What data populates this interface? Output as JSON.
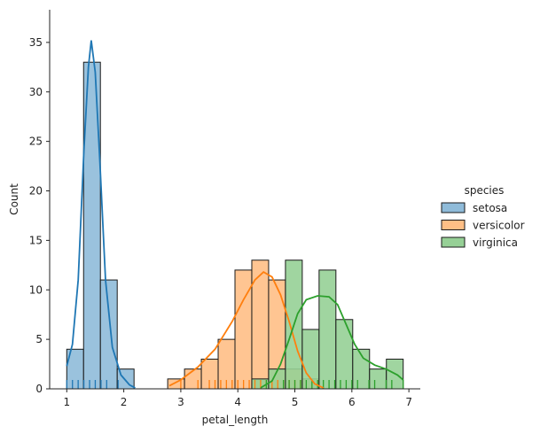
{
  "chart_data": {
    "type": "histogram",
    "xlabel": "petal_length",
    "ylabel": "Count",
    "xlim": [
      0.7,
      7.2
    ],
    "ylim": [
      0,
      38.3
    ],
    "xticks": [
      1,
      2,
      3,
      4,
      5,
      6,
      7
    ],
    "yticks": [
      0,
      5,
      10,
      15,
      20,
      25,
      30,
      35
    ],
    "bin_width": 0.295,
    "bin_start": 1.0,
    "legend": {
      "title": "species",
      "placement": "right"
    },
    "series": [
      {
        "name": "setosa",
        "color": "#1f77b4",
        "fill": "#8fbbd9",
        "bins": [
          [
            0,
            4
          ],
          [
            1,
            33
          ],
          [
            2,
            11
          ],
          [
            3,
            2
          ]
        ],
        "kde": [
          [
            1.0,
            2.3
          ],
          [
            1.1,
            4.5
          ],
          [
            1.2,
            11
          ],
          [
            1.3,
            24
          ],
          [
            1.38,
            32.5
          ],
          [
            1.43,
            35.2
          ],
          [
            1.5,
            32
          ],
          [
            1.58,
            23
          ],
          [
            1.68,
            11
          ],
          [
            1.8,
            4.2
          ],
          [
            1.95,
            1.4
          ],
          [
            2.1,
            0.4
          ],
          [
            2.2,
            0.1
          ]
        ],
        "rug": [
          1.0,
          1.1,
          1.2,
          1.3,
          1.4,
          1.5,
          1.6,
          1.7,
          1.9
        ]
      },
      {
        "name": "versicolor",
        "color": "#ff7f0e",
        "fill": "#ffbf86",
        "bins": [
          [
            6,
            1
          ],
          [
            7,
            2
          ],
          [
            8,
            3
          ],
          [
            9,
            5
          ],
          [
            10,
            12
          ],
          [
            11,
            13
          ],
          [
            12,
            11
          ],
          [
            13,
            2
          ],
          [
            14,
            1
          ]
        ],
        "kde": [
          [
            2.8,
            0.3
          ],
          [
            3.0,
            0.9
          ],
          [
            3.3,
            2.2
          ],
          [
            3.6,
            4.0
          ],
          [
            3.9,
            6.8
          ],
          [
            4.1,
            9.0
          ],
          [
            4.3,
            11.0
          ],
          [
            4.45,
            11.8
          ],
          [
            4.6,
            11.3
          ],
          [
            4.75,
            9.5
          ],
          [
            4.9,
            6.8
          ],
          [
            5.05,
            3.8
          ],
          [
            5.2,
            1.6
          ],
          [
            5.35,
            0.5
          ],
          [
            5.5,
            0.1
          ]
        ],
        "rug": [
          3.0,
          3.3,
          3.5,
          3.6,
          3.7,
          3.8,
          3.9,
          4.0,
          4.1,
          4.2,
          4.3,
          4.4,
          4.5,
          4.6,
          4.7,
          4.8,
          4.9,
          5.0,
          5.1
        ]
      },
      {
        "name": "virginica",
        "color": "#2ca02c",
        "fill": "#96d096",
        "bins": [
          [
            11,
            1
          ],
          [
            12,
            2
          ],
          [
            13,
            13
          ],
          [
            14,
            6
          ],
          [
            15,
            12
          ],
          [
            16,
            7
          ],
          [
            17,
            4
          ],
          [
            18,
            2
          ],
          [
            19,
            3
          ]
        ],
        "kde": [
          [
            4.4,
            0.1
          ],
          [
            4.6,
            0.8
          ],
          [
            4.75,
            2.5
          ],
          [
            4.9,
            5.0
          ],
          [
            5.05,
            7.6
          ],
          [
            5.2,
            9.0
          ],
          [
            5.4,
            9.4
          ],
          [
            5.6,
            9.3
          ],
          [
            5.75,
            8.5
          ],
          [
            5.9,
            6.5
          ],
          [
            6.05,
            4.5
          ],
          [
            6.2,
            3.1
          ],
          [
            6.4,
            2.4
          ],
          [
            6.6,
            2.0
          ],
          [
            6.8,
            1.4
          ],
          [
            6.9,
            0.9
          ]
        ],
        "rug": [
          4.5,
          4.8,
          4.9,
          5.0,
          5.1,
          5.2,
          5.3,
          5.4,
          5.5,
          5.6,
          5.7,
          5.8,
          5.9,
          6.0,
          6.1,
          6.3,
          6.4,
          6.6,
          6.7,
          6.9
        ]
      }
    ]
  }
}
